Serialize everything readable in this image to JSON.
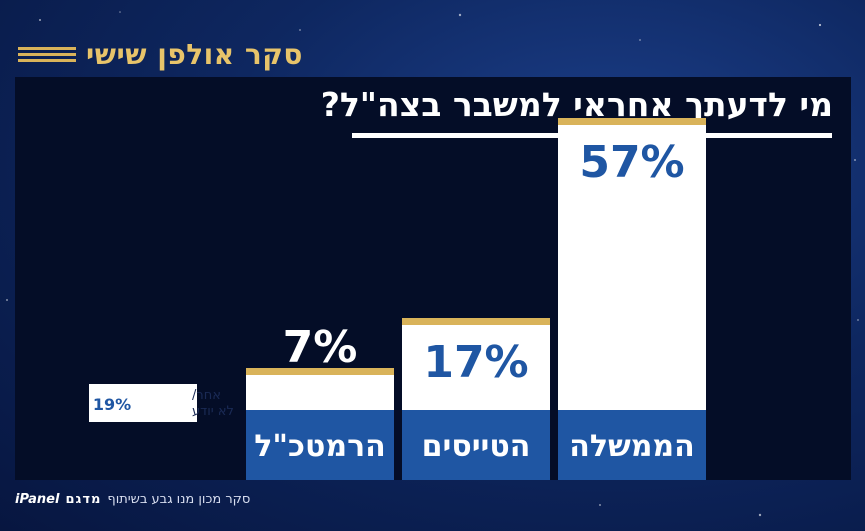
{
  "brand": {
    "title": "סקר אולפן שישי"
  },
  "question": "מי לדעתך אחראי למשבר בצה\"ל?",
  "footer": {
    "text": "סקר מכון מנו גבע בשיתוף",
    "logo_text": "מדגם",
    "panel_text": "iPanel"
  },
  "colors": {
    "bar_top": "#ffffff",
    "bar_base": "#1f56a3",
    "gold": "#d9b35a",
    "value_text_on_white": "#1f56a3",
    "value_text_on_dark": "#ffffff"
  },
  "chart_data": {
    "type": "bar",
    "title": "מי לדעתך אחראי למשבר בצה\"ל?",
    "categories": [
      "הממשלה",
      "הטייסים",
      "הרמטכ\"ל"
    ],
    "values": [
      57,
      17,
      7
    ],
    "value_labels": [
      "57%",
      "17%",
      "7%"
    ],
    "unit": "%",
    "ylim": [
      0,
      60
    ],
    "grid": false,
    "legend": "none",
    "other": {
      "label_line1": "אחר/",
      "label_line2": "לא יודע",
      "value": 19,
      "value_label": "19%"
    }
  }
}
